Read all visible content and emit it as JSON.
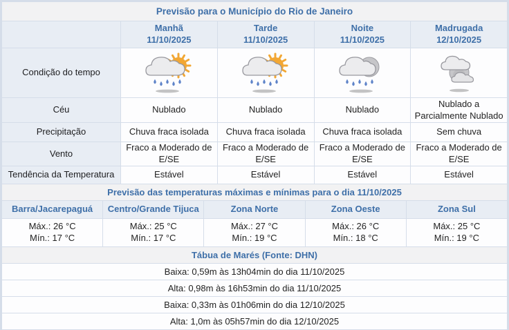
{
  "colors": {
    "accent_blue_text": "#3e6fa8",
    "header_cell_bg": "#e8edf4",
    "section_bar_bg": "#f2f2f3",
    "grid_border": "#d5dde9",
    "sun": "#f2a734",
    "rain_drop": "#5f84c9"
  },
  "forecast": {
    "title": "Previsão para o Município do Rio de Janeiro",
    "row_labels": {
      "condition": "Condição do tempo",
      "sky": "Céu",
      "precipitation": "Precipitação",
      "wind": "Vento",
      "temp_trend": "Tendência da Temperatura"
    },
    "columns": [
      {
        "period": "Manhã",
        "date": "11/10/2025",
        "icon": "sun-cloud-rain",
        "sky": "Nublado",
        "precipitation": "Chuva fraca isolada",
        "wind": "Fraco a Moderado de E/SE",
        "temp_trend": "Estável"
      },
      {
        "period": "Tarde",
        "date": "11/10/2025",
        "icon": "sun-cloud-rain",
        "sky": "Nublado",
        "precipitation": "Chuva fraca isolada",
        "wind": "Fraco a Moderado de E/SE",
        "temp_trend": "Estável"
      },
      {
        "period": "Noite",
        "date": "11/10/2025",
        "icon": "moon-cloud-rain",
        "sky": "Nublado",
        "precipitation": "Chuva fraca isolada",
        "wind": "Fraco a Moderado de E/SE",
        "temp_trend": "Estável"
      },
      {
        "period": "Madrugada",
        "date": "12/10/2025",
        "icon": "moon-clouds",
        "sky": "Nublado a Parcialmente Nublado",
        "precipitation": "Sem chuva",
        "wind": "Fraco a Moderado de E/SE",
        "temp_trend": "Estável"
      }
    ]
  },
  "temperatures": {
    "title": "Previsão das temperaturas máximas e mínimas para o dia 11/10/2025",
    "zones": [
      {
        "name": "Barra/Jacarepaguá",
        "max": "Máx.: 26 °C",
        "min": "Mín.: 17 °C"
      },
      {
        "name": "Centro/Grande Tijuca",
        "max": "Máx.: 25 °C",
        "min": "Mín.: 17 °C"
      },
      {
        "name": "Zona Norte",
        "max": "Máx.: 27 °C",
        "min": "Mín.: 19 °C"
      },
      {
        "name": "Zona Oeste",
        "max": "Máx.: 26 °C",
        "min": "Mín.: 18 °C"
      },
      {
        "name": "Zona Sul",
        "max": "Máx.: 25 °C",
        "min": "Mín.: 19 °C"
      }
    ]
  },
  "tides": {
    "title": "Tábua de Marés (Fonte: DHN)",
    "entries": [
      "Baixa: 0,59m às 13h04min do dia 11/10/2025",
      "Alta: 0,98m às 16h53min do dia 11/10/2025",
      "Baixa: 0,33m às 01h06min do dia 12/10/2025",
      "Alta: 1,0m às 05h57min do dia 12/10/2025"
    ]
  }
}
